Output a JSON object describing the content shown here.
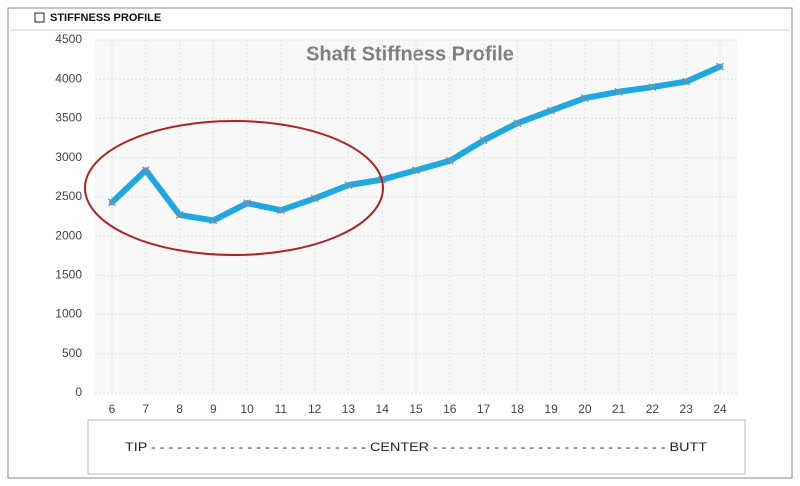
{
  "chart_data": {
    "type": "line",
    "panel_title": "STIFFNESS PROFILE",
    "title": "Shaft Stiffness Profile",
    "categories": [
      "6",
      "7",
      "8",
      "9",
      "10",
      "11",
      "12",
      "13",
      "14",
      "15",
      "16",
      "17",
      "18",
      "19",
      "20",
      "21",
      "22",
      "23",
      "24"
    ],
    "values": [
      2430,
      2840,
      2270,
      2200,
      2420,
      2330,
      2480,
      2650,
      2720,
      2840,
      2960,
      3220,
      3440,
      3600,
      3760,
      3840,
      3900,
      3970,
      4160
    ],
    "color": "#1ea8e2",
    "ylim": [
      0,
      4500
    ],
    "yticks": [
      0,
      500,
      1000,
      1500,
      2000,
      2500,
      3000,
      3500,
      4000,
      4500
    ],
    "grid": true,
    "x_note": "TIP - - - - - - - - - - - - - - - - - - - - - - - - - CENTER - - - - - - - - - - - - - - - - - - - - - - - - - - - BUTT"
  }
}
